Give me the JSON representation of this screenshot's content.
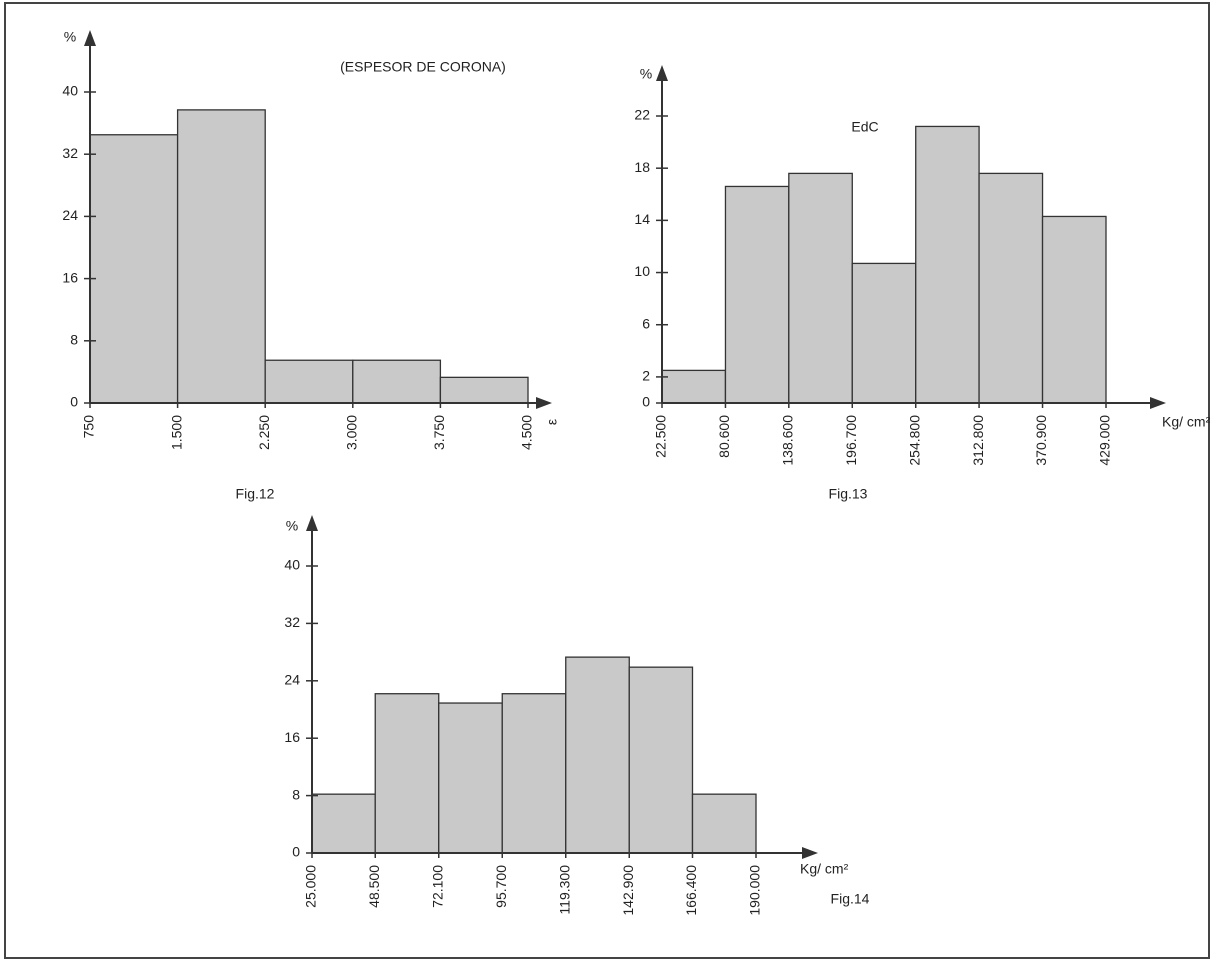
{
  "chart_data": [
    {
      "type": "histogram",
      "title": "(ESPESOR DE CORONA)",
      "ylabel": "%",
      "xlabel": "ε",
      "caption": "Fig.12",
      "bins": [
        750,
        1500,
        2250,
        3000,
        3750,
        4500
      ],
      "values": [
        34.5,
        37.7,
        5.5,
        5.5,
        3.3
      ],
      "xlim": [
        750,
        4500
      ],
      "ylim": [
        0,
        40
      ],
      "yticks": [
        0,
        8,
        16,
        24,
        32,
        40
      ],
      "xticks": [
        750,
        {
          "value": 1500,
          "label": "1.500"
        },
        {
          "value": 2250,
          "label": "2.250"
        },
        {
          "value": 3000,
          "label": "3.000"
        },
        {
          "value": 3750,
          "label": "3.750"
        },
        {
          "value": 4500,
          "label": "4.500"
        }
      ],
      "color": "#c9c9c9"
    },
    {
      "type": "histogram",
      "title": "EdC",
      "ylabel": "%",
      "xlabel": "Kg/ cm²",
      "caption": "Fig.13",
      "bins": [
        22.5,
        80.6,
        138.6,
        196.7,
        254.8,
        312.8,
        370.9,
        429.0
      ],
      "values": [
        2.5,
        16.6,
        17.6,
        10.7,
        21.2,
        17.6,
        14.3
      ],
      "xlim": [
        22.5,
        429.0
      ],
      "ylim": [
        0,
        22
      ],
      "yticks": [
        0,
        2,
        6,
        10,
        14,
        18,
        22
      ],
      "xticks": [
        {
          "value": 22.5,
          "label": "22.500"
        },
        {
          "value": 80.6,
          "label": "80.600"
        },
        {
          "value": 138.6,
          "label": "138.600"
        },
        {
          "value": 196.7,
          "label": "196.700"
        },
        {
          "value": 254.8,
          "label": "254.800"
        },
        {
          "value": 312.8,
          "label": "312.800"
        },
        {
          "value": 370.9,
          "label": "370.900"
        },
        {
          "value": 429.0,
          "label": "429.000"
        }
      ],
      "color": "#c9c9c9"
    },
    {
      "type": "histogram",
      "ylabel": "%",
      "xlabel": "Kg/ cm²",
      "caption": "Fig.14",
      "bins": [
        25.0,
        48.5,
        72.1,
        95.7,
        119.3,
        142.9,
        166.4,
        190.0
      ],
      "values": [
        8.2,
        22.2,
        20.9,
        22.2,
        27.3,
        25.9,
        8.2
      ],
      "xlim": [
        25.0,
        190.0
      ],
      "ylim": [
        0,
        40
      ],
      "yticks": [
        0,
        8,
        16,
        24,
        32,
        40
      ],
      "xticks": [
        {
          "value": 25.0,
          "label": "25.000"
        },
        {
          "value": 48.5,
          "label": "48.500"
        },
        {
          "value": 72.1,
          "label": "72.100"
        },
        {
          "value": 95.7,
          "label": "95.700"
        },
        {
          "value": 119.3,
          "label": "119.300"
        },
        {
          "value": 142.9,
          "label": "142.900"
        },
        {
          "value": 166.4,
          "label": "166.400"
        },
        {
          "value": 190.0,
          "label": "190.000"
        }
      ],
      "color": "#c9c9c9"
    }
  ]
}
